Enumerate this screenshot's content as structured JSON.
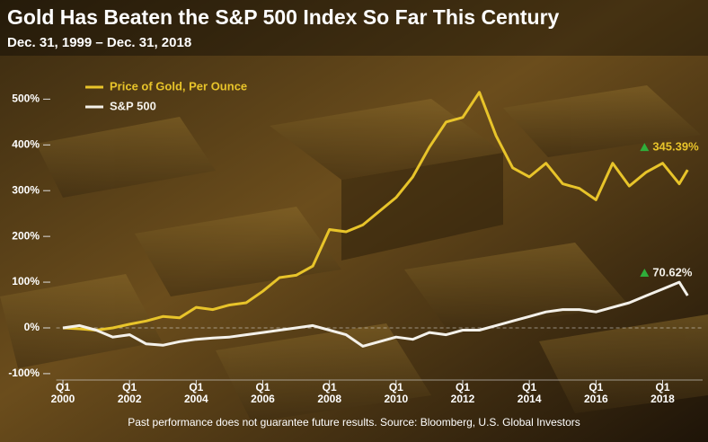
{
  "chart_data": {
    "type": "line",
    "title": "Gold Has Beaten the S&P 500 Index So Far This Century",
    "subtitle": "Dec. 31, 1999 – Dec. 31, 2018",
    "footnote": "Past performance does not guarantee future results.  Source: Bloomberg, U.S. Global Investors",
    "x": [
      2000,
      2000.5,
      2001,
      2001.5,
      2002,
      2002.5,
      2003,
      2003.5,
      2004,
      2004.5,
      2005,
      2005.5,
      2006,
      2006.5,
      2007,
      2007.5,
      2008,
      2008.5,
      2009,
      2009.5,
      2010,
      2010.5,
      2011,
      2011.5,
      2012,
      2012.5,
      2013,
      2013.5,
      2014,
      2014.5,
      2015,
      2015.5,
      2016,
      2016.5,
      2017,
      2017.5,
      2018,
      2018.5,
      2018.75
    ],
    "series": [
      {
        "name": "Price of Gold, Per Ounce",
        "color": "#e8c42a",
        "values": [
          0,
          -2,
          -5,
          0,
          8,
          15,
          25,
          22,
          45,
          40,
          50,
          55,
          80,
          110,
          115,
          135,
          215,
          210,
          225,
          255,
          285,
          330,
          395,
          450,
          460,
          515,
          420,
          350,
          330,
          360,
          315,
          305,
          280,
          360,
          310,
          340,
          360,
          315,
          345.39
        ]
      },
      {
        "name": "S&P 500",
        "color": "#f4f1ea",
        "values": [
          0,
          5,
          -5,
          -20,
          -15,
          -35,
          -38,
          -30,
          -25,
          -22,
          -20,
          -15,
          -10,
          -5,
          0,
          5,
          -5,
          -15,
          -40,
          -30,
          -20,
          -25,
          -10,
          -15,
          -5,
          -5,
          5,
          15,
          25,
          35,
          40,
          40,
          35,
          45,
          55,
          70,
          85,
          100,
          70.62
        ]
      }
    ],
    "annotations": [
      {
        "text": "345.39%",
        "series": 0
      },
      {
        "text": "70.62%",
        "series": 1
      }
    ],
    "xlim": [
      1999.8,
      2019.2
    ],
    "xticks": [
      {
        "value": 2000,
        "label": "Q1\n2000"
      },
      {
        "value": 2002,
        "label": "Q1\n2002"
      },
      {
        "value": 2004,
        "label": "Q1\n2004"
      },
      {
        "value": 2006,
        "label": "Q1\n2006"
      },
      {
        "value": 2008,
        "label": "Q1\n2008"
      },
      {
        "value": 2010,
        "label": "Q1\n2010"
      },
      {
        "value": 2012,
        "label": "Q1\n2012"
      },
      {
        "value": 2014,
        "label": "Q1\n2014"
      },
      {
        "value": 2016,
        "label": "Q1\n2016"
      },
      {
        "value": 2018,
        "label": "Q1\n2018"
      }
    ],
    "ylim": [
      -110,
      540
    ],
    "yticks": [
      {
        "value": -100,
        "label": "-100%"
      },
      {
        "value": 0,
        "label": "0%"
      },
      {
        "value": 100,
        "label": "100%"
      },
      {
        "value": 200,
        "label": "200%"
      },
      {
        "value": 300,
        "label": "300%"
      },
      {
        "value": 400,
        "label": "400%"
      },
      {
        "value": 500,
        "label": "500%"
      }
    ],
    "grid": false,
    "legend": "upper left"
  }
}
